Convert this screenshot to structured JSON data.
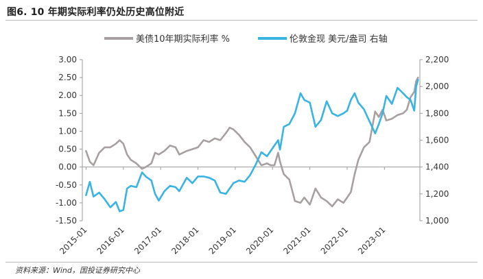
{
  "title": "图6. 10 年期实际利率仍处历史高位附近",
  "source": "资料来源：Wind，国投证券研究中心",
  "chart_data": {
    "type": "line",
    "title": "图6. 10 年期实际利率仍处历史高位附近",
    "x_range": [
      2014.9,
      2023.95
    ],
    "x_tick_labels": [
      "2015-01",
      "2016-01",
      "2017-01",
      "2018-01",
      "2019-01",
      "2020-01",
      "2021-01",
      "2022-01",
      "2023-01"
    ],
    "x_tick_values": [
      2015.0,
      2016.0,
      2017.0,
      2018.0,
      2019.0,
      2020.0,
      2021.0,
      2022.0,
      2023.0
    ],
    "left_axis": {
      "ylim": [
        -1.5,
        3.0
      ],
      "ticks": [
        3.0,
        2.5,
        2.0,
        1.5,
        1.0,
        0.5,
        0.0,
        -0.5,
        -1.0,
        -1.5
      ],
      "tick_labels": [
        "3.00",
        "2.50",
        "2.00",
        "1.50",
        "1.00",
        "0.50",
        "0.00",
        "-0.50",
        "-1.00",
        "-1.50"
      ]
    },
    "right_axis": {
      "ylim": [
        1000,
        2200
      ],
      "ticks": [
        2200,
        2000,
        1800,
        1600,
        1400,
        1200,
        1000
      ],
      "tick_labels": [
        "2,200",
        "2,000",
        "1,800",
        "1,600",
        "1,400",
        "1,200",
        "1,000"
      ]
    },
    "series": [
      {
        "name": "美债10年期实际利率 %",
        "axis": "left",
        "color": "#a6a0a0",
        "x": [
          2015.0,
          2015.1,
          2015.2,
          2015.35,
          2015.5,
          2015.65,
          2015.8,
          2015.9,
          2016.0,
          2016.1,
          2016.2,
          2016.35,
          2016.5,
          2016.6,
          2016.75,
          2016.85,
          2016.95,
          2017.1,
          2017.25,
          2017.4,
          2017.5,
          2017.7,
          2017.85,
          2018.0,
          2018.15,
          2018.3,
          2018.45,
          2018.6,
          2018.75,
          2018.85,
          2018.95,
          2019.1,
          2019.25,
          2019.4,
          2019.55,
          2019.7,
          2019.85,
          2019.95,
          2020.05,
          2020.15,
          2020.2,
          2020.3,
          2020.45,
          2020.6,
          2020.75,
          2020.85,
          2021.0,
          2021.15,
          2021.3,
          2021.45,
          2021.6,
          2021.75,
          2021.9,
          2022.0,
          2022.1,
          2022.2,
          2022.3,
          2022.45,
          2022.6,
          2022.75,
          2022.85,
          2022.95,
          2023.05,
          2023.2,
          2023.35,
          2023.5,
          2023.6,
          2023.7,
          2023.8,
          2023.85,
          2023.9
        ],
        "values": [
          0.45,
          0.15,
          0.05,
          0.4,
          0.55,
          0.55,
          0.65,
          0.75,
          0.65,
          0.35,
          0.2,
          0.1,
          -0.05,
          0.0,
          0.1,
          0.4,
          0.35,
          0.45,
          0.6,
          0.55,
          0.35,
          0.45,
          0.5,
          0.55,
          0.75,
          0.7,
          0.8,
          0.75,
          0.95,
          1.1,
          1.05,
          0.9,
          0.7,
          0.55,
          0.3,
          0.05,
          0.1,
          0.05,
          0.05,
          0.4,
          0.15,
          -0.2,
          -0.35,
          -0.95,
          -1.0,
          -0.85,
          -1.05,
          -0.6,
          -0.85,
          -0.95,
          -1.1,
          -0.9,
          -1.0,
          -0.85,
          -0.7,
          -0.2,
          0.2,
          0.55,
          0.7,
          1.55,
          1.4,
          1.6,
          1.3,
          1.35,
          1.45,
          1.5,
          1.6,
          1.95,
          2.1,
          2.4,
          2.5
        ]
      },
      {
        "name": "伦敦金现 美元/盎司 右轴",
        "axis": "right",
        "color": "#37b3e4",
        "x": [
          2015.0,
          2015.1,
          2015.2,
          2015.35,
          2015.5,
          2015.65,
          2015.8,
          2015.9,
          2016.0,
          2016.1,
          2016.2,
          2016.35,
          2016.5,
          2016.6,
          2016.75,
          2016.85,
          2016.95,
          2017.1,
          2017.25,
          2017.4,
          2017.5,
          2017.7,
          2017.85,
          2018.0,
          2018.15,
          2018.3,
          2018.45,
          2018.6,
          2018.75,
          2018.85,
          2018.95,
          2019.1,
          2019.25,
          2019.4,
          2019.55,
          2019.7,
          2019.85,
          2019.95,
          2020.05,
          2020.15,
          2020.2,
          2020.3,
          2020.45,
          2020.6,
          2020.75,
          2020.85,
          2021.0,
          2021.15,
          2021.3,
          2021.45,
          2021.6,
          2021.75,
          2021.9,
          2022.0,
          2022.1,
          2022.2,
          2022.3,
          2022.45,
          2022.6,
          2022.75,
          2022.85,
          2022.95,
          2023.05,
          2023.2,
          2023.35,
          2023.5,
          2023.6,
          2023.7,
          2023.8,
          2023.85,
          2023.9
        ],
        "values": [
          1190,
          1290,
          1180,
          1210,
          1160,
          1100,
          1140,
          1070,
          1080,
          1240,
          1260,
          1250,
          1360,
          1330,
          1300,
          1200,
          1150,
          1220,
          1260,
          1250,
          1220,
          1320,
          1280,
          1330,
          1330,
          1320,
          1300,
          1210,
          1200,
          1240,
          1280,
          1300,
          1290,
          1340,
          1420,
          1510,
          1480,
          1520,
          1560,
          1600,
          1530,
          1700,
          1720,
          1800,
          1950,
          1900,
          1880,
          1700,
          1750,
          1890,
          1800,
          1780,
          1800,
          1820,
          1900,
          1950,
          1880,
          1830,
          1740,
          1650,
          1720,
          1800,
          1930,
          1870,
          1990,
          1950,
          1920,
          1900,
          1820,
          2000,
          2050
        ]
      }
    ]
  }
}
